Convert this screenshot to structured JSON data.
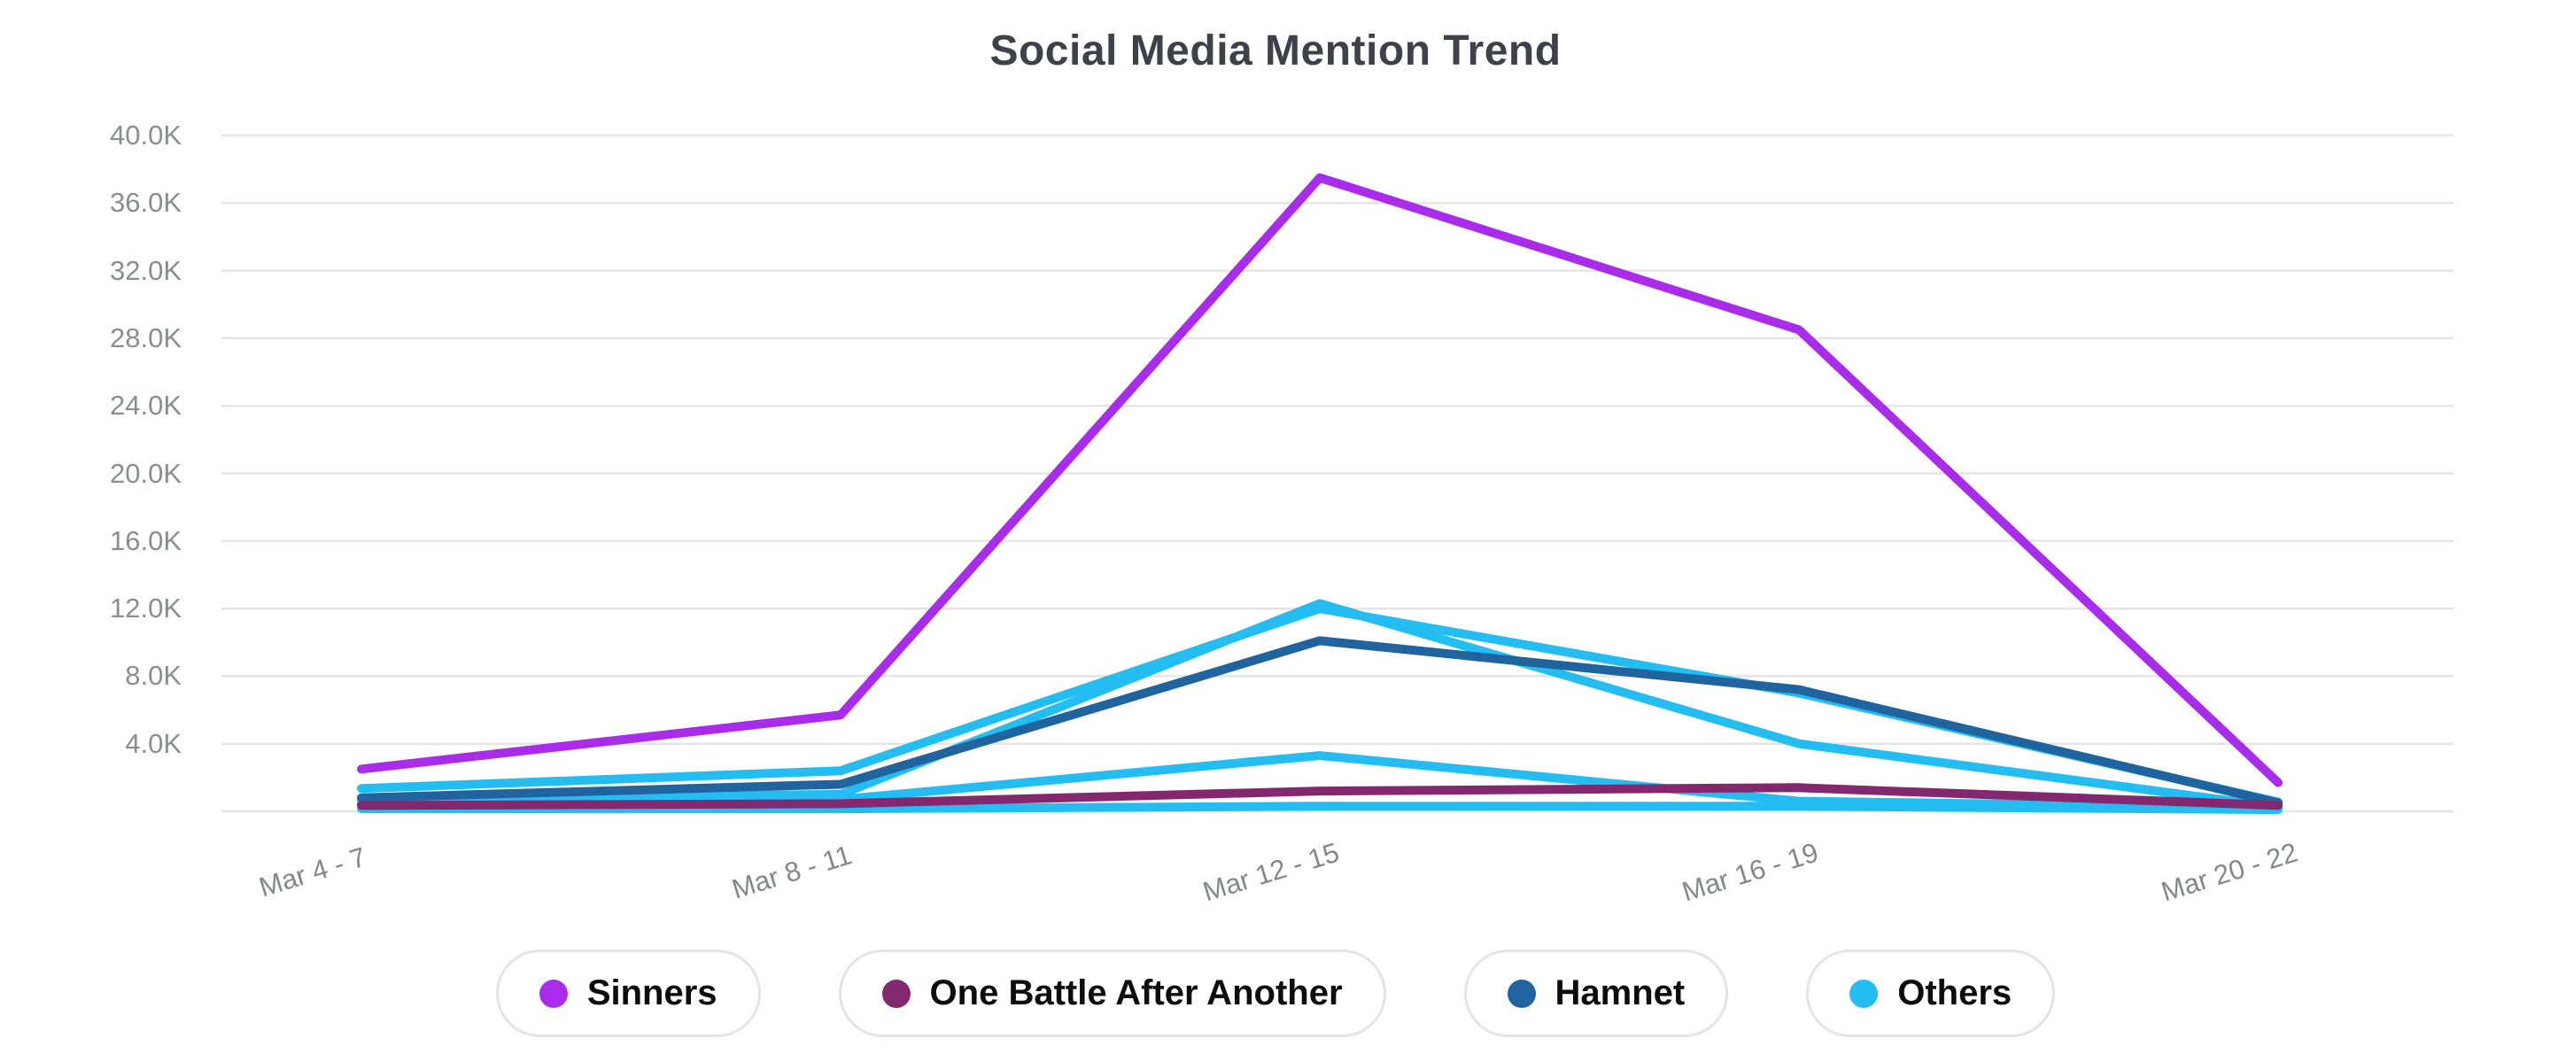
{
  "page": {
    "title": "Social Media Mention Trend"
  },
  "chart_data": {
    "type": "line",
    "title": "Social Media Mention Trend",
    "xlabel": "",
    "ylabel": "",
    "categories": [
      "Mar 4 - 7",
      "Mar 8 - 11",
      "Mar 12 - 15",
      "Mar 16 - 19",
      "Mar 20 - 22"
    ],
    "y_axis": {
      "min": 0,
      "max": 40000,
      "tick_step": 4000,
      "tick_labels": [
        "4.0K",
        "8.0K",
        "12.0K",
        "16.0K",
        "20.0K",
        "24.0K",
        "28.0K",
        "32.0K",
        "36.0K",
        "40.0K"
      ]
    },
    "grid": true,
    "legend_position": "bottom",
    "colors": {
      "sinners": "#a92ceb",
      "one_battle_after_another": "#83286f",
      "hamnet": "#1f639f",
      "others": "#23bdf2",
      "grid": "#e5e5e7",
      "title_text": "#3d424a",
      "tick_text": "#8a8d91"
    },
    "series": [
      {
        "name": "Sinners",
        "color": "#a92ceb",
        "lines": [
          [
            2500,
            5700,
            37500,
            28500,
            1700
          ]
        ]
      },
      {
        "name": "One Battle After Another",
        "color": "#83286f",
        "lines": [
          [
            350,
            450,
            1200,
            1400,
            350
          ]
        ]
      },
      {
        "name": "Hamnet",
        "color": "#1f639f",
        "lines": [
          [
            800,
            1600,
            10100,
            7200,
            500
          ]
        ]
      },
      {
        "name": "Others",
        "color": "#23bdf2",
        "lines": [
          [
            1350,
            2400,
            12000,
            7000,
            550
          ],
          [
            700,
            1000,
            12300,
            4000,
            250
          ],
          [
            500,
            700,
            3300,
            600,
            200
          ],
          [
            150,
            150,
            300,
            300,
            100
          ]
        ]
      }
    ]
  }
}
